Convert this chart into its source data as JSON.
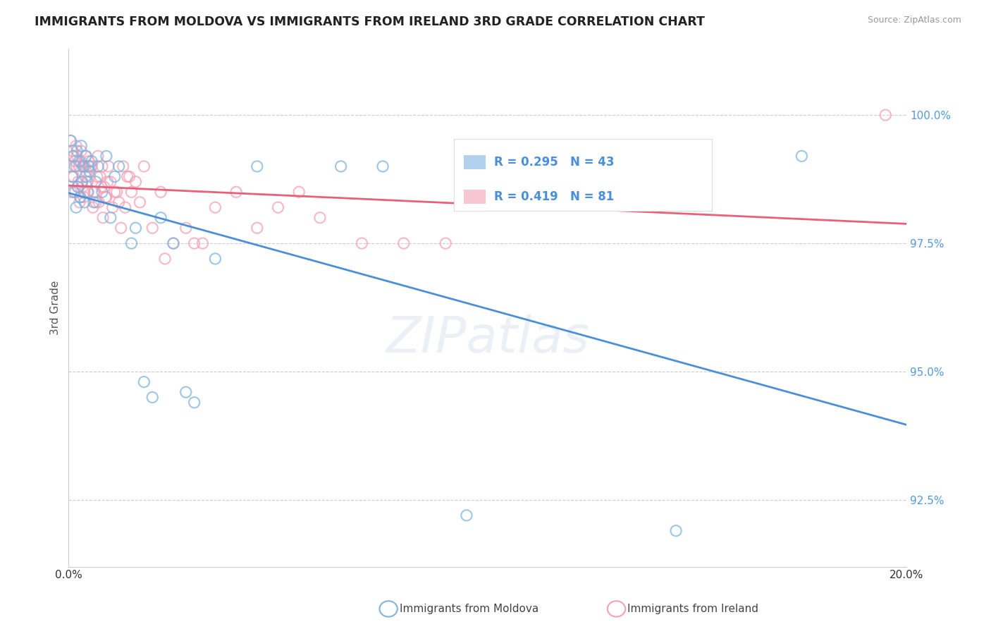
{
  "title": "IMMIGRANTS FROM MOLDOVA VS IMMIGRANTS FROM IRELAND 3RD GRADE CORRELATION CHART",
  "source": "Source: ZipAtlas.com",
  "ylabel": "3rd Grade",
  "y_ticks": [
    92.5,
    95.0,
    97.5,
    100.0
  ],
  "y_tick_labels": [
    "92.5%",
    "95.0%",
    "97.5%",
    "100.0%"
  ],
  "xlim": [
    0.0,
    20.0
  ],
  "ylim": [
    91.2,
    101.3
  ],
  "moldova_R": 0.295,
  "moldova_N": 43,
  "ireland_R": 0.419,
  "ireland_N": 81,
  "moldova_color": "#7EB3E0",
  "ireland_color": "#F4A0B5",
  "moldova_line_color": "#4A90D9",
  "ireland_line_color": "#E8607A",
  "legend_moldova": "Immigrants from Moldova",
  "legend_ireland": "Immigrants from Ireland",
  "moldova_x": [
    0.05,
    0.08,
    0.1,
    0.12,
    0.15,
    0.18,
    0.2,
    0.22,
    0.25,
    0.28,
    0.3,
    0.32,
    0.35,
    0.38,
    0.4,
    0.42,
    0.45,
    0.48,
    0.5,
    0.55,
    0.6,
    0.65,
    0.7,
    0.8,
    0.9,
    1.0,
    1.1,
    1.2,
    1.5,
    1.6,
    1.8,
    2.0,
    2.2,
    2.5,
    2.8,
    3.0,
    3.5,
    4.5,
    6.5,
    7.5,
    9.5,
    14.5,
    17.5
  ],
  "moldova_y": [
    99.5,
    98.8,
    99.2,
    98.5,
    99.0,
    98.2,
    99.3,
    98.6,
    99.1,
    98.4,
    99.4,
    98.7,
    99.0,
    98.3,
    98.8,
    99.2,
    98.5,
    99.0,
    98.9,
    99.1,
    98.3,
    98.7,
    99.0,
    98.5,
    99.2,
    98.0,
    98.8,
    99.0,
    97.5,
    97.8,
    94.8,
    94.5,
    98.0,
    97.5,
    94.6,
    94.4,
    97.2,
    99.0,
    99.0,
    99.0,
    92.2,
    91.9,
    99.2
  ],
  "ireland_x": [
    0.04,
    0.07,
    0.1,
    0.12,
    0.15,
    0.18,
    0.2,
    0.22,
    0.25,
    0.28,
    0.3,
    0.32,
    0.35,
    0.38,
    0.4,
    0.42,
    0.45,
    0.48,
    0.5,
    0.55,
    0.6,
    0.65,
    0.7,
    0.75,
    0.8,
    0.85,
    0.9,
    0.95,
    1.0,
    1.1,
    1.2,
    1.3,
    1.4,
    1.5,
    1.6,
    1.7,
    1.8,
    2.0,
    2.2,
    2.5,
    2.8,
    3.0,
    3.5,
    4.0,
    5.0,
    5.5,
    6.0,
    7.0,
    8.0,
    9.0,
    0.06,
    0.09,
    0.13,
    0.16,
    0.19,
    0.23,
    0.26,
    0.29,
    0.33,
    0.36,
    0.39,
    0.44,
    0.47,
    0.52,
    0.58,
    0.62,
    0.68,
    0.72,
    0.78,
    0.82,
    0.88,
    0.93,
    1.05,
    1.15,
    1.25,
    1.35,
    1.45,
    2.3,
    3.2,
    4.5,
    19.5
  ],
  "ireland_y": [
    99.5,
    99.0,
    99.3,
    98.8,
    99.1,
    99.4,
    99.2,
    98.6,
    99.0,
    98.4,
    99.3,
    98.7,
    99.0,
    98.5,
    99.2,
    98.9,
    98.7,
    99.1,
    98.8,
    99.0,
    98.5,
    98.3,
    99.2,
    98.8,
    99.0,
    98.6,
    98.4,
    99.0,
    98.7,
    98.5,
    98.3,
    99.0,
    98.8,
    98.5,
    98.7,
    98.3,
    99.0,
    97.8,
    98.5,
    97.5,
    97.8,
    97.5,
    98.2,
    98.5,
    98.2,
    98.5,
    98.0,
    97.5,
    97.5,
    97.5,
    98.5,
    98.8,
    99.2,
    98.5,
    99.0,
    98.7,
    98.3,
    99.1,
    98.6,
    98.4,
    99.0,
    98.7,
    98.5,
    99.0,
    98.2,
    98.5,
    98.8,
    98.3,
    98.6,
    98.0,
    98.4,
    98.7,
    98.2,
    98.5,
    97.8,
    98.2,
    98.8,
    97.2,
    97.5,
    97.8,
    100.0
  ]
}
